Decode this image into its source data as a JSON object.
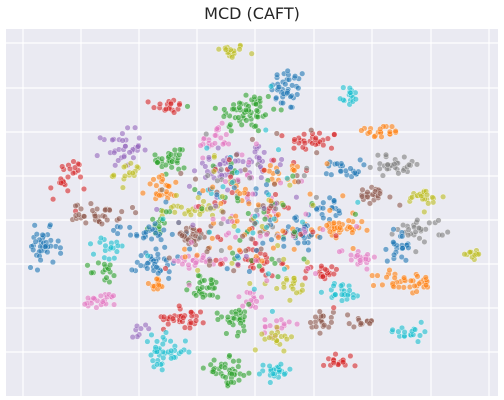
{
  "chart_data": {
    "type": "scatter",
    "title": "MCD (CAFT)",
    "xlabel": "",
    "ylabel": "",
    "grid": true,
    "axis_ticks_visible": false,
    "legend": "none",
    "marker_alpha": 0.6,
    "xlim": [
      0,
      100
    ],
    "ylim": [
      0,
      100
    ],
    "palette": [
      "#1f77b4",
      "#ff7f0e",
      "#2ca02c",
      "#d62728",
      "#9467bd",
      "#8c564b",
      "#e377c2",
      "#7f7f7f",
      "#bcbd22",
      "#17becf"
    ],
    "clusters": [
      {
        "x": 45.5,
        "y": 94.0,
        "sx": 1.6,
        "sy": 1.0,
        "n": 18,
        "color": "#bcbd22"
      },
      {
        "x": 57.5,
        "y": 83.5,
        "sx": 1.8,
        "sy": 3.0,
        "n": 40,
        "color": "#1f77b4"
      },
      {
        "x": 69.5,
        "y": 82.0,
        "sx": 1.2,
        "sy": 1.5,
        "n": 16,
        "color": "#17becf"
      },
      {
        "x": 33.0,
        "y": 79.0,
        "sx": 1.6,
        "sy": 1.0,
        "n": 18,
        "color": "#d62728"
      },
      {
        "x": 49.0,
        "y": 77.5,
        "sx": 3.0,
        "sy": 3.0,
        "n": 60,
        "color": "#2ca02c"
      },
      {
        "x": 76.0,
        "y": 72.0,
        "sx": 2.3,
        "sy": 1.0,
        "n": 20,
        "color": "#ff7f0e"
      },
      {
        "x": 62.5,
        "y": 69.5,
        "sx": 2.6,
        "sy": 1.4,
        "n": 30,
        "color": "#d62728"
      },
      {
        "x": 42.5,
        "y": 69.5,
        "sx": 1.6,
        "sy": 2.0,
        "n": 22,
        "color": "#e377c2"
      },
      {
        "x": 23.5,
        "y": 67.5,
        "sx": 2.0,
        "sy": 2.4,
        "n": 35,
        "color": "#9467bd"
      },
      {
        "x": 33.5,
        "y": 64.5,
        "sx": 1.5,
        "sy": 2.6,
        "n": 30,
        "color": "#2ca02c"
      },
      {
        "x": 51.0,
        "y": 64.0,
        "sx": 1.5,
        "sy": 2.0,
        "n": 18,
        "color": "#9467bd"
      },
      {
        "x": 79.5,
        "y": 63.0,
        "sx": 2.6,
        "sy": 1.5,
        "n": 30,
        "color": "#7f7f7f"
      },
      {
        "x": 68.5,
        "y": 62.0,
        "sx": 1.8,
        "sy": 1.2,
        "n": 22,
        "color": "#1f77b4"
      },
      {
        "x": 12.5,
        "y": 59.0,
        "sx": 1.8,
        "sy": 3.0,
        "n": 25,
        "color": "#d62728"
      },
      {
        "x": 43.5,
        "y": 62.0,
        "sx": 3.0,
        "sy": 2.2,
        "n": 35,
        "color": "#9467bd"
      },
      {
        "x": 25.0,
        "y": 60.5,
        "sx": 1.5,
        "sy": 1.6,
        "n": 16,
        "color": "#bcbd22"
      },
      {
        "x": 56.0,
        "y": 60.5,
        "sx": 1.5,
        "sy": 1.0,
        "n": 14,
        "color": "#ff7f0e"
      },
      {
        "x": 32.5,
        "y": 56.5,
        "sx": 2.0,
        "sy": 1.7,
        "n": 25,
        "color": "#ff7f0e"
      },
      {
        "x": 74.5,
        "y": 54.5,
        "sx": 2.0,
        "sy": 1.2,
        "n": 22,
        "color": "#8c564b"
      },
      {
        "x": 85.0,
        "y": 54.0,
        "sx": 2.0,
        "sy": 1.4,
        "n": 22,
        "color": "#bcbd22"
      },
      {
        "x": 18.5,
        "y": 49.5,
        "sx": 2.4,
        "sy": 1.4,
        "n": 35,
        "color": "#8c564b"
      },
      {
        "x": 38.0,
        "y": 51.0,
        "sx": 3.0,
        "sy": 1.0,
        "n": 22,
        "color": "#bcbd22"
      },
      {
        "x": 65.5,
        "y": 51.0,
        "sx": 1.5,
        "sy": 1.5,
        "n": 18,
        "color": "#1f77b4"
      },
      {
        "x": 31.5,
        "y": 47.5,
        "sx": 1.2,
        "sy": 2.0,
        "n": 14,
        "color": "#2ca02c"
      },
      {
        "x": 84.5,
        "y": 45.5,
        "sx": 2.4,
        "sy": 1.6,
        "n": 28,
        "color": "#7f7f7f"
      },
      {
        "x": 28.5,
        "y": 44.5,
        "sx": 2.8,
        "sy": 1.0,
        "n": 24,
        "color": "#1f77b4"
      },
      {
        "x": 67.0,
        "y": 45.0,
        "sx": 2.6,
        "sy": 1.6,
        "n": 35,
        "color": "#ff7f0e"
      },
      {
        "x": 37.5,
        "y": 43.5,
        "sx": 2.0,
        "sy": 1.5,
        "n": 28,
        "color": "#8c564b"
      },
      {
        "x": 60.0,
        "y": 45.0,
        "sx": 2.0,
        "sy": 2.0,
        "n": 25,
        "color": "#1f77b4"
      },
      {
        "x": 80.0,
        "y": 41.0,
        "sx": 1.2,
        "sy": 2.2,
        "n": 24,
        "color": "#1f77b4"
      },
      {
        "x": 7.5,
        "y": 40.5,
        "sx": 1.6,
        "sy": 2.5,
        "n": 40,
        "color": "#1f77b4"
      },
      {
        "x": 21.0,
        "y": 39.5,
        "sx": 1.5,
        "sy": 2.0,
        "n": 18,
        "color": "#17becf"
      },
      {
        "x": 94.5,
        "y": 39.0,
        "sx": 1.3,
        "sy": 1.0,
        "n": 12,
        "color": "#bcbd22"
      },
      {
        "x": 71.5,
        "y": 38.0,
        "sx": 2.0,
        "sy": 1.3,
        "n": 20,
        "color": "#e377c2"
      },
      {
        "x": 30.5,
        "y": 36.5,
        "sx": 2.0,
        "sy": 2.2,
        "n": 35,
        "color": "#1f77b4"
      },
      {
        "x": 39.0,
        "y": 37.0,
        "sx": 2.5,
        "sy": 1.0,
        "n": 22,
        "color": "#e377c2"
      },
      {
        "x": 20.0,
        "y": 33.5,
        "sx": 1.5,
        "sy": 1.6,
        "n": 16,
        "color": "#2ca02c"
      },
      {
        "x": 64.5,
        "y": 34.0,
        "sx": 2.0,
        "sy": 1.2,
        "n": 22,
        "color": "#d62728"
      },
      {
        "x": 50.5,
        "y": 36.5,
        "sx": 2.5,
        "sy": 2.0,
        "n": 30,
        "color": "#d62728"
      },
      {
        "x": 81.5,
        "y": 31.0,
        "sx": 3.0,
        "sy": 1.6,
        "n": 38,
        "color": "#ff7f0e"
      },
      {
        "x": 30.5,
        "y": 30.0,
        "sx": 1.2,
        "sy": 1.4,
        "n": 12,
        "color": "#ff7f0e"
      },
      {
        "x": 40.5,
        "y": 29.5,
        "sx": 2.3,
        "sy": 1.6,
        "n": 30,
        "color": "#2ca02c"
      },
      {
        "x": 68.5,
        "y": 28.5,
        "sx": 1.8,
        "sy": 1.4,
        "n": 24,
        "color": "#17becf"
      },
      {
        "x": 58.5,
        "y": 29.5,
        "sx": 1.3,
        "sy": 1.6,
        "n": 16,
        "color": "#bcbd22"
      },
      {
        "x": 19.5,
        "y": 26.0,
        "sx": 2.0,
        "sy": 1.0,
        "n": 24,
        "color": "#e377c2"
      },
      {
        "x": 49.5,
        "y": 26.5,
        "sx": 1.5,
        "sy": 1.5,
        "n": 16,
        "color": "#e377c2"
      },
      {
        "x": 36.5,
        "y": 21.5,
        "sx": 2.2,
        "sy": 1.4,
        "n": 35,
        "color": "#d62728"
      },
      {
        "x": 46.5,
        "y": 21.0,
        "sx": 2.0,
        "sy": 2.0,
        "n": 30,
        "color": "#2ca02c"
      },
      {
        "x": 64.0,
        "y": 20.5,
        "sx": 1.3,
        "sy": 1.5,
        "n": 20,
        "color": "#8c564b"
      },
      {
        "x": 55.0,
        "y": 19.0,
        "sx": 1.3,
        "sy": 1.4,
        "n": 16,
        "color": "#e377c2"
      },
      {
        "x": 72.5,
        "y": 20.5,
        "sx": 1.5,
        "sy": 1.0,
        "n": 14,
        "color": "#8c564b"
      },
      {
        "x": 55.5,
        "y": 15.5,
        "sx": 1.5,
        "sy": 1.4,
        "n": 18,
        "color": "#bcbd22"
      },
      {
        "x": 82.0,
        "y": 17.5,
        "sx": 2.2,
        "sy": 1.0,
        "n": 18,
        "color": "#17becf"
      },
      {
        "x": 27.5,
        "y": 18.5,
        "sx": 1.0,
        "sy": 1.0,
        "n": 8,
        "color": "#9467bd"
      },
      {
        "x": 32.0,
        "y": 12.0,
        "sx": 2.3,
        "sy": 2.2,
        "n": 40,
        "color": "#17becf"
      },
      {
        "x": 67.5,
        "y": 9.5,
        "sx": 1.5,
        "sy": 1.0,
        "n": 18,
        "color": "#d62728"
      },
      {
        "x": 45.0,
        "y": 6.5,
        "sx": 2.2,
        "sy": 1.8,
        "n": 40,
        "color": "#2ca02c"
      },
      {
        "x": 54.5,
        "y": 6.5,
        "sx": 1.8,
        "sy": 1.2,
        "n": 26,
        "color": "#17becf"
      },
      {
        "x": 50.0,
        "y": 50.0,
        "sx": 8.0,
        "sy": 9.0,
        "n": 320,
        "color": "mixed"
      }
    ]
  }
}
